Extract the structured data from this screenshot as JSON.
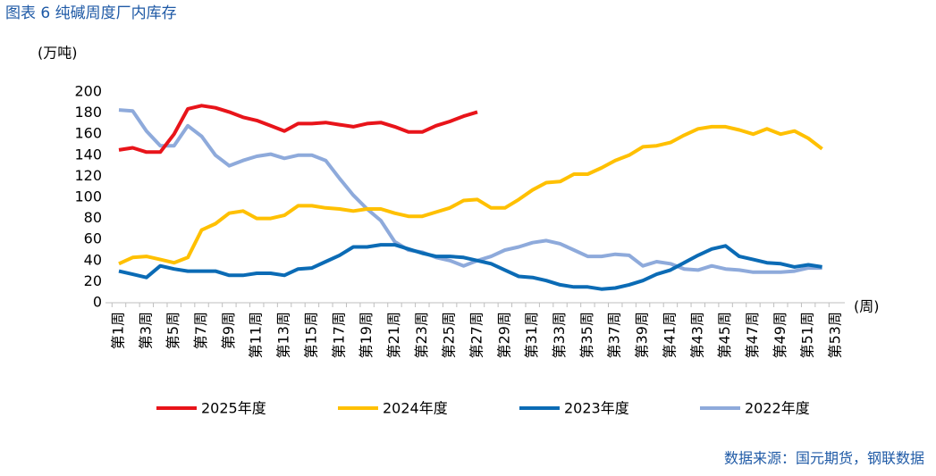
{
  "chart_data": {
    "type": "line",
    "title": "图表 6 纯碱周度厂内库存",
    "y_label": "(万吨)",
    "x_label": "(周)",
    "source": "数据来源：国元期货，钢联数据",
    "categories": [
      "第1周",
      null,
      "第3周",
      null,
      "第5周",
      null,
      "第7周",
      null,
      "第9周",
      null,
      "第11周",
      null,
      "第13周",
      null,
      "第15周",
      null,
      "第17周",
      null,
      "第19周",
      null,
      "第21周",
      null,
      "第23周",
      null,
      "第25周",
      null,
      "第27周",
      null,
      "第29周",
      null,
      "第31周",
      null,
      "第33周",
      null,
      "第35周",
      null,
      "第37周",
      null,
      "第39周",
      null,
      "第41周",
      null,
      "第43周",
      null,
      "第45周",
      null,
      "第47周",
      null,
      "第49周",
      null,
      "第51周",
      null,
      "第53周"
    ],
    "ylim": [
      0,
      200
    ],
    "yticks": [
      0,
      20,
      40,
      60,
      80,
      100,
      120,
      140,
      160,
      180,
      200
    ],
    "series": [
      {
        "name": "2025年度",
        "color": "#e8141a",
        "values": [
          145,
          147,
          143,
          143,
          160,
          184,
          187,
          185,
          181,
          176,
          173,
          168,
          163,
          170,
          170,
          171,
          169,
          167,
          170,
          171,
          167,
          162,
          162,
          168,
          172,
          177,
          181,
          null,
          null,
          null,
          null,
          null,
          null,
          null,
          null,
          null,
          null,
          null,
          null,
          null,
          null,
          null,
          null,
          null,
          null,
          null,
          null,
          null,
          null,
          null,
          null,
          null,
          null
        ]
      },
      {
        "name": "2024年度",
        "color": "#ffc000",
        "values": [
          37,
          43,
          44,
          41,
          38,
          43,
          69,
          75,
          85,
          87,
          80,
          80,
          83,
          92,
          92,
          90,
          89,
          87,
          89,
          89,
          85,
          82,
          82,
          86,
          90,
          97,
          98,
          90,
          90,
          98,
          107,
          114,
          115,
          122,
          122,
          128,
          135,
          140,
          148,
          149,
          152,
          159,
          165,
          167,
          167,
          164,
          160,
          165,
          160,
          163,
          156,
          146,
          null
        ]
      },
      {
        "name": "2023年度",
        "color": "#0b6bb5",
        "values": [
          30,
          27,
          24,
          35,
          32,
          30,
          30,
          30,
          26,
          26,
          28,
          28,
          26,
          32,
          33,
          39,
          45,
          53,
          53,
          55,
          55,
          51,
          47,
          44,
          44,
          43,
          40,
          37,
          31,
          25,
          24,
          21,
          17,
          15,
          15,
          13,
          14,
          17,
          21,
          27,
          31,
          38,
          45,
          51,
          54,
          44,
          41,
          38,
          37,
          34,
          36,
          34,
          null
        ]
      },
      {
        "name": "2022年度",
        "color": "#8eaadb",
        "values": [
          183,
          182,
          163,
          149,
          149,
          168,
          158,
          140,
          130,
          135,
          139,
          141,
          137,
          140,
          140,
          135,
          118,
          102,
          89,
          78,
          58,
          50,
          48,
          43,
          40,
          35,
          40,
          44,
          50,
          53,
          57,
          59,
          56,
          50,
          44,
          44,
          46,
          45,
          35,
          39,
          37,
          32,
          31,
          35,
          32,
          31,
          29,
          29,
          29,
          30,
          33,
          33,
          null
        ]
      }
    ]
  }
}
